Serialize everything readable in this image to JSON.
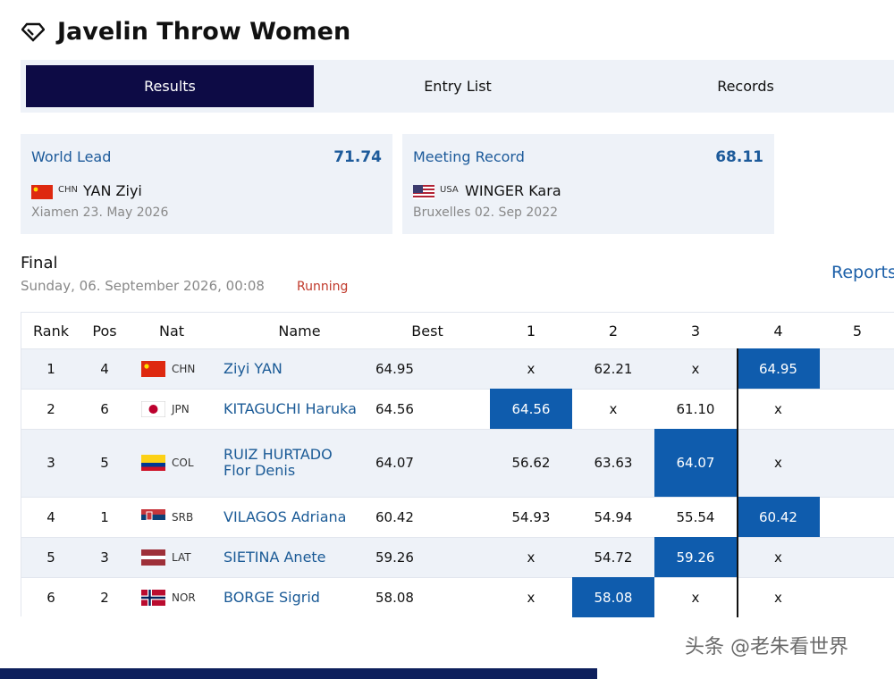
{
  "header": {
    "title": "Javelin Throw Women"
  },
  "tabs": [
    "Results",
    "Entry List",
    "Records"
  ],
  "records": [
    {
      "label": "World Lead",
      "value": "71.74",
      "country": "CHN",
      "name": "YAN Ziyi",
      "place_date": "Xiamen 23. May 2026"
    },
    {
      "label": "Meeting Record",
      "value": "68.11",
      "country": "USA",
      "name": "WINGER Kara",
      "place_date": "Bruxelles 02. Sep 2022"
    }
  ],
  "event": {
    "title": "Final",
    "datetime": "Sunday, 06. September 2026, 00:08",
    "status": "Running",
    "reports": "Reports"
  },
  "table": {
    "columns": [
      "Rank",
      "Pos",
      "Nat",
      "Name",
      "Best",
      "1",
      "2",
      "3",
      "4",
      "5"
    ],
    "rows": [
      [
        "1",
        "4",
        "CHN",
        "Ziyi YAN",
        "64.95",
        "x",
        "62.21",
        "x",
        "64.95",
        ""
      ],
      [
        "2",
        "6",
        "JPN",
        "KITAGUCHI Haruka",
        "64.56",
        "64.56",
        "x",
        "61.10",
        "x",
        ""
      ],
      [
        "3",
        "5",
        "COL",
        "RUIZ HURTADO Flor Denis",
        "64.07",
        "56.62",
        "63.63",
        "64.07",
        "x",
        ""
      ],
      [
        "4",
        "1",
        "SRB",
        "VILAGOS Adriana",
        "60.42",
        "54.93",
        "54.94",
        "55.54",
        "60.42",
        ""
      ],
      [
        "5",
        "3",
        "LAT",
        "SIETINA Anete",
        "59.26",
        "x",
        "54.72",
        "59.26",
        "x",
        ""
      ],
      [
        "6",
        "2",
        "NOR",
        "BORGE Sigrid",
        "58.08",
        "x",
        "58.08",
        "x",
        "x",
        ""
      ]
    ]
  },
  "watermark": "头条 @老朱看世界"
}
